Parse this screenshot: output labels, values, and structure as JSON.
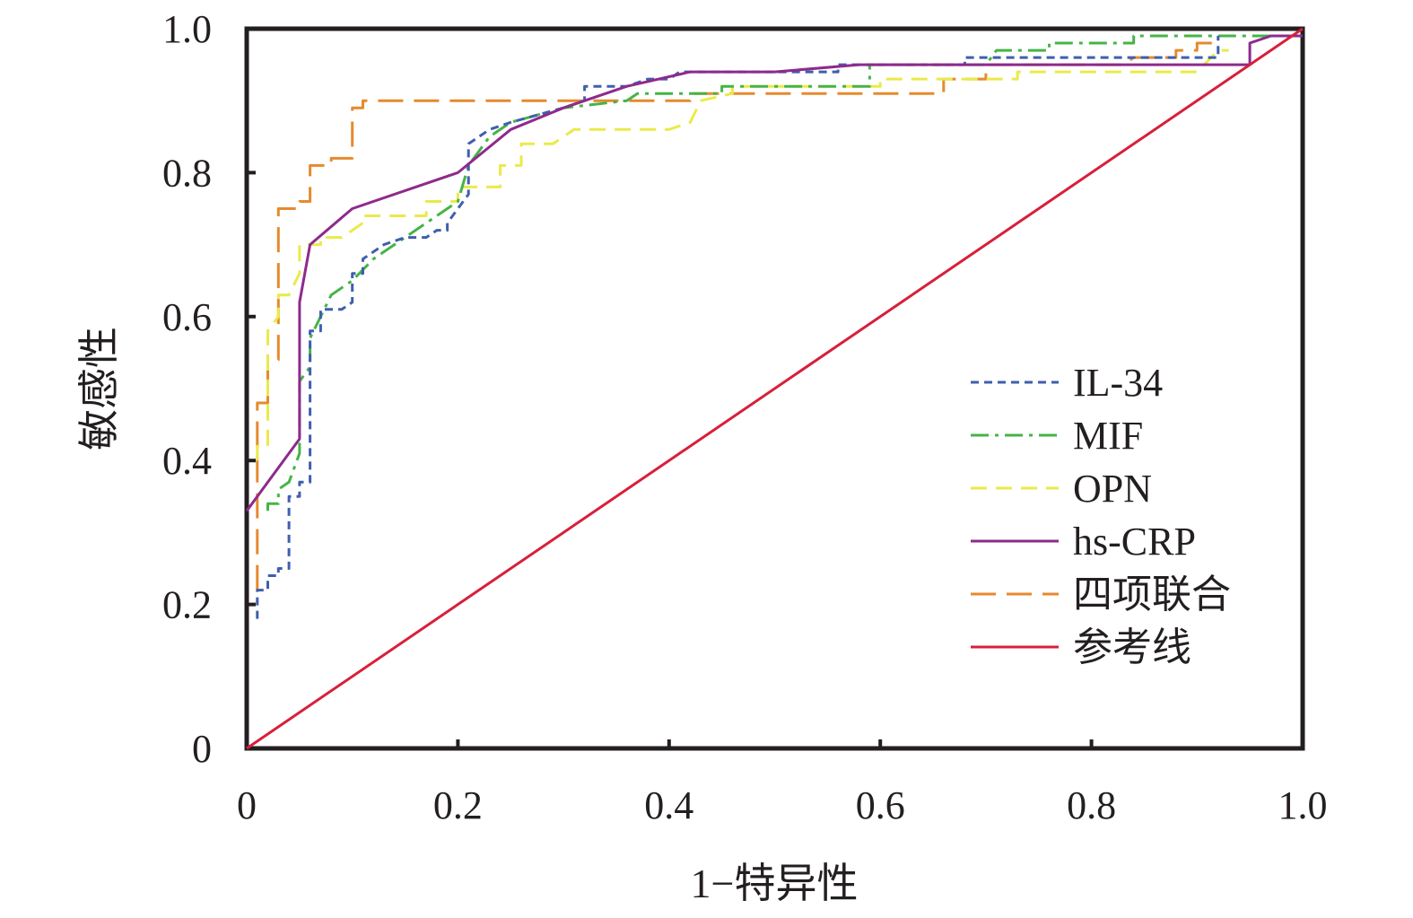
{
  "chart_data": {
    "type": "line",
    "title": "",
    "xlabel": "1−特异性",
    "ylabel": "敏感性",
    "xlim": [
      0,
      1
    ],
    "ylim": [
      0,
      1
    ],
    "xticks": [
      "0",
      "0.2",
      "0.4",
      "0.6",
      "0.8",
      "1.0"
    ],
    "yticks": [
      "0",
      "0.2",
      "0.4",
      "0.6",
      "0.8",
      "1.0"
    ],
    "grid": false,
    "legend_position": "center-right",
    "series": [
      {
        "name": "IL-34",
        "color": "#3f5fae",
        "dash": "dotted-short",
        "points": [
          [
            0.01,
            0.18
          ],
          [
            0.01,
            0.22
          ],
          [
            0.02,
            0.22
          ],
          [
            0.02,
            0.24
          ],
          [
            0.03,
            0.24
          ],
          [
            0.03,
            0.25
          ],
          [
            0.04,
            0.25
          ],
          [
            0.04,
            0.35
          ],
          [
            0.05,
            0.35
          ],
          [
            0.05,
            0.37
          ],
          [
            0.06,
            0.37
          ],
          [
            0.06,
            0.58
          ],
          [
            0.07,
            0.58
          ],
          [
            0.07,
            0.61
          ],
          [
            0.09,
            0.61
          ],
          [
            0.1,
            0.62
          ],
          [
            0.1,
            0.66
          ],
          [
            0.11,
            0.66
          ],
          [
            0.11,
            0.68
          ],
          [
            0.13,
            0.7
          ],
          [
            0.15,
            0.71
          ],
          [
            0.17,
            0.71
          ],
          [
            0.18,
            0.72
          ],
          [
            0.19,
            0.72
          ],
          [
            0.19,
            0.73
          ],
          [
            0.2,
            0.75
          ],
          [
            0.21,
            0.77
          ],
          [
            0.21,
            0.84
          ],
          [
            0.23,
            0.86
          ],
          [
            0.25,
            0.87
          ],
          [
            0.3,
            0.89
          ],
          [
            0.32,
            0.9
          ],
          [
            0.32,
            0.92
          ],
          [
            0.36,
            0.92
          ],
          [
            0.38,
            0.93
          ],
          [
            0.4,
            0.93
          ],
          [
            0.41,
            0.94
          ],
          [
            0.56,
            0.94
          ],
          [
            0.56,
            0.95
          ],
          [
            0.68,
            0.95
          ],
          [
            0.68,
            0.96
          ],
          [
            0.92,
            0.96
          ],
          [
            0.92,
            0.99
          ]
        ]
      },
      {
        "name": "MIF",
        "color": "#46b447",
        "dash": "dash-dot",
        "points": [
          [
            0.02,
            0.33
          ],
          [
            0.02,
            0.34
          ],
          [
            0.03,
            0.34
          ],
          [
            0.03,
            0.36
          ],
          [
            0.04,
            0.37
          ],
          [
            0.05,
            0.41
          ],
          [
            0.05,
            0.51
          ],
          [
            0.06,
            0.53
          ],
          [
            0.06,
            0.57
          ],
          [
            0.07,
            0.6
          ],
          [
            0.08,
            0.63
          ],
          [
            0.1,
            0.65
          ],
          [
            0.12,
            0.68
          ],
          [
            0.15,
            0.71
          ],
          [
            0.17,
            0.73
          ],
          [
            0.2,
            0.76
          ],
          [
            0.21,
            0.81
          ],
          [
            0.23,
            0.85
          ],
          [
            0.25,
            0.87
          ],
          [
            0.3,
            0.89
          ],
          [
            0.36,
            0.9
          ],
          [
            0.37,
            0.91
          ],
          [
            0.45,
            0.91
          ],
          [
            0.45,
            0.92
          ],
          [
            0.59,
            0.92
          ],
          [
            0.59,
            0.95
          ],
          [
            0.7,
            0.95
          ],
          [
            0.71,
            0.97
          ],
          [
            0.76,
            0.97
          ],
          [
            0.76,
            0.98
          ],
          [
            0.84,
            0.98
          ],
          [
            0.84,
            0.99
          ],
          [
            1.0,
            0.99
          ]
        ]
      },
      {
        "name": "OPN",
        "color": "#eaea4a",
        "dash": "dashed",
        "points": [
          [
            0.01,
            0.4
          ],
          [
            0.01,
            0.42
          ],
          [
            0.02,
            0.42
          ],
          [
            0.02,
            0.58
          ],
          [
            0.03,
            0.6
          ],
          [
            0.03,
            0.63
          ],
          [
            0.04,
            0.63
          ],
          [
            0.05,
            0.66
          ],
          [
            0.05,
            0.7
          ],
          [
            0.07,
            0.7
          ],
          [
            0.07,
            0.71
          ],
          [
            0.09,
            0.71
          ],
          [
            0.1,
            0.72
          ],
          [
            0.11,
            0.73
          ],
          [
            0.11,
            0.74
          ],
          [
            0.17,
            0.74
          ],
          [
            0.17,
            0.76
          ],
          [
            0.2,
            0.76
          ],
          [
            0.2,
            0.78
          ],
          [
            0.24,
            0.78
          ],
          [
            0.24,
            0.81
          ],
          [
            0.26,
            0.81
          ],
          [
            0.26,
            0.84
          ],
          [
            0.29,
            0.84
          ],
          [
            0.3,
            0.85
          ],
          [
            0.31,
            0.86
          ],
          [
            0.4,
            0.86
          ],
          [
            0.42,
            0.87
          ],
          [
            0.43,
            0.9
          ],
          [
            0.46,
            0.91
          ],
          [
            0.46,
            0.92
          ],
          [
            0.6,
            0.92
          ],
          [
            0.6,
            0.93
          ],
          [
            0.7,
            0.93
          ],
          [
            0.73,
            0.93
          ],
          [
            0.73,
            0.94
          ],
          [
            0.9,
            0.94
          ],
          [
            0.92,
            0.97
          ],
          [
            0.93,
            0.97
          ]
        ]
      },
      {
        "name": "hs-CRP",
        "color": "#8e2a8c",
        "dash": "solid",
        "points": [
          [
            0.0,
            0.33
          ],
          [
            0.05,
            0.43
          ],
          [
            0.05,
            0.62
          ],
          [
            0.06,
            0.7
          ],
          [
            0.1,
            0.75
          ],
          [
            0.2,
            0.8
          ],
          [
            0.25,
            0.86
          ],
          [
            0.3,
            0.89
          ],
          [
            0.36,
            0.92
          ],
          [
            0.42,
            0.94
          ],
          [
            0.5,
            0.94
          ],
          [
            0.58,
            0.95
          ],
          [
            0.8,
            0.95
          ],
          [
            0.95,
            0.95
          ],
          [
            0.95,
            0.98
          ],
          [
            0.97,
            0.99
          ],
          [
            1.0,
            0.99
          ]
        ]
      },
      {
        "name": "四项联合",
        "color": "#e68a2e",
        "dash": "long-dash",
        "points": [
          [
            0.01,
            0.22
          ],
          [
            0.01,
            0.48
          ],
          [
            0.02,
            0.48
          ],
          [
            0.02,
            0.54
          ],
          [
            0.03,
            0.54
          ],
          [
            0.03,
            0.75
          ],
          [
            0.05,
            0.75
          ],
          [
            0.05,
            0.76
          ],
          [
            0.06,
            0.76
          ],
          [
            0.06,
            0.81
          ],
          [
            0.08,
            0.81
          ],
          [
            0.08,
            0.82
          ],
          [
            0.1,
            0.82
          ],
          [
            0.1,
            0.89
          ],
          [
            0.11,
            0.89
          ],
          [
            0.11,
            0.9
          ],
          [
            0.32,
            0.9
          ],
          [
            0.42,
            0.9
          ],
          [
            0.42,
            0.91
          ],
          [
            0.45,
            0.91
          ],
          [
            0.66,
            0.91
          ],
          [
            0.66,
            0.93
          ],
          [
            0.7,
            0.93
          ],
          [
            0.7,
            0.95
          ],
          [
            0.83,
            0.95
          ],
          [
            0.84,
            0.96
          ],
          [
            0.88,
            0.96
          ],
          [
            0.88,
            0.97
          ],
          [
            0.9,
            0.97
          ],
          [
            0.9,
            0.98
          ],
          [
            0.92,
            0.98
          ]
        ]
      },
      {
        "name": "参考线",
        "color": "#d81f3a",
        "dash": "solid",
        "points": [
          [
            0,
            0
          ],
          [
            1,
            1
          ]
        ]
      }
    ]
  }
}
